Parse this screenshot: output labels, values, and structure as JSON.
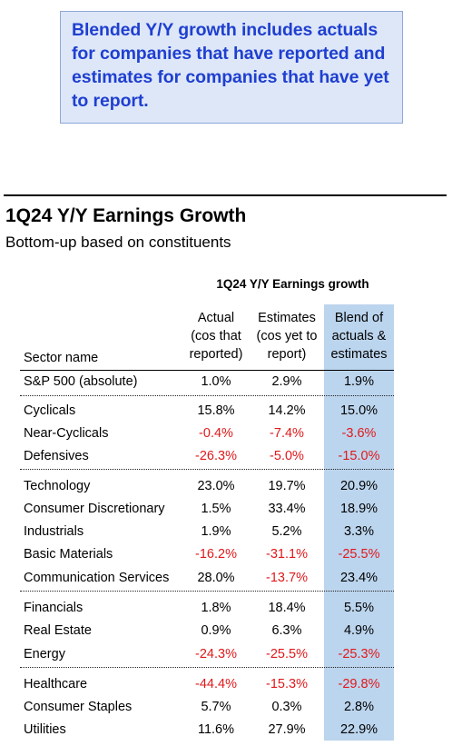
{
  "callout": {
    "text": "Blended Y/Y growth includes actuals for companies that have reported and estimates for companies that have yet to report."
  },
  "table": {
    "title": "1Q24 Y/Y Earnings Growth",
    "subtitle": "Bottom-up based on constituents",
    "group_header": "1Q24 Y/Y Earnings growth",
    "columns": {
      "sector": "Sector name",
      "actual": [
        "Actual",
        "(cos that",
        "reported)"
      ],
      "estimates": [
        "Estimates",
        "(cos yet to",
        "report)"
      ],
      "blend": [
        "Blend of",
        "actuals &",
        "estimates"
      ]
    },
    "rows": [
      {
        "name": "S&P 500 (absolute)",
        "actual": "1.0%",
        "estimates": "2.9%",
        "blend": "1.9%"
      },
      {
        "name": "Cyclicals",
        "actual": "15.8%",
        "estimates": "14.2%",
        "blend": "15.0%"
      },
      {
        "name": "Near-Cyclicals",
        "actual": "-0.4%",
        "estimates": "-7.4%",
        "blend": "-3.6%"
      },
      {
        "name": "Defensives",
        "actual": "-26.3%",
        "estimates": "-5.0%",
        "blend": "-15.0%"
      },
      {
        "name": "Technology",
        "actual": "23.0%",
        "estimates": "19.7%",
        "blend": "20.9%"
      },
      {
        "name": "Consumer Discretionary",
        "actual": "1.5%",
        "estimates": "33.4%",
        "blend": "18.9%"
      },
      {
        "name": "Industrials",
        "actual": "1.9%",
        "estimates": "5.2%",
        "blend": "3.3%"
      },
      {
        "name": "Basic Materials",
        "actual": "-16.2%",
        "estimates": "-31.1%",
        "blend": "-25.5%"
      },
      {
        "name": "Communication Services",
        "actual": "28.0%",
        "estimates": "-13.7%",
        "blend": "23.4%"
      },
      {
        "name": "Financials",
        "actual": "1.8%",
        "estimates": "18.4%",
        "blend": "5.5%"
      },
      {
        "name": "Real Estate",
        "actual": "0.9%",
        "estimates": "6.3%",
        "blend": "4.9%"
      },
      {
        "name": "Energy",
        "actual": "-24.3%",
        "estimates": "-25.5%",
        "blend": "-25.3%"
      },
      {
        "name": "Healthcare",
        "actual": "-44.4%",
        "estimates": "-15.3%",
        "blend": "-29.8%"
      },
      {
        "name": "Consumer Staples",
        "actual": "5.7%",
        "estimates": "0.3%",
        "blend": "2.8%"
      },
      {
        "name": "Utilities",
        "actual": "11.6%",
        "estimates": "27.9%",
        "blend": "22.9%"
      }
    ]
  },
  "colors": {
    "callout_text": "#1f3fd0",
    "callout_bg": "#dde7f8",
    "blend_column_bg": "#bcd5ee",
    "negative": "#e0191b"
  }
}
